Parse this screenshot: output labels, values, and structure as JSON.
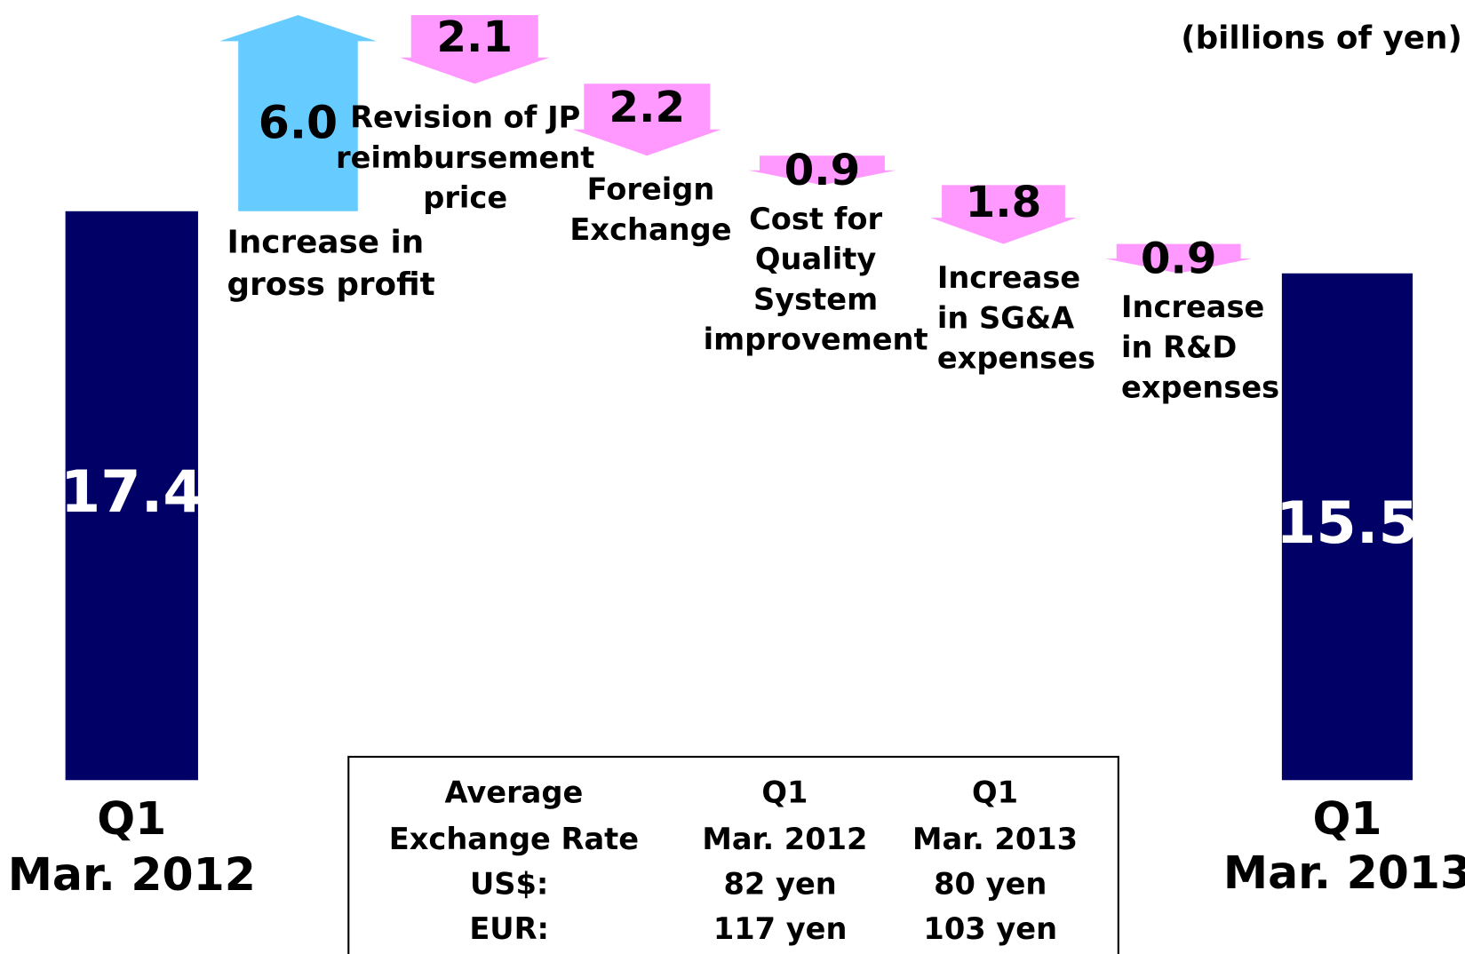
{
  "chart_data": {
    "type": "waterfall",
    "unit_note": "(billions of yen)",
    "categories": [
      [
        "Q1",
        "Mar. 2012"
      ],
      [
        "Increase in",
        "gross profit"
      ],
      [
        "Revision of JP",
        "reimbursement",
        "price"
      ],
      [
        "Foreign",
        "Exchange"
      ],
      [
        "Cost for",
        "Quality",
        "System",
        "improvement"
      ],
      [
        "Increase",
        "in SG&A",
        "expenses"
      ],
      [
        "Increase",
        "in R&D",
        "expenses"
      ],
      [
        "Q1",
        "Mar. 2013"
      ]
    ],
    "values": [
      17.4,
      6.0,
      -2.1,
      -2.2,
      -0.9,
      -1.8,
      -0.9,
      15.5
    ],
    "value_labels": [
      "17.4",
      "6.0",
      "2.1",
      "2.2",
      "0.9",
      "1.8",
      "0.9",
      "15.5"
    ],
    "kinds": [
      "total",
      "change",
      "change",
      "change",
      "change",
      "change",
      "change",
      "total"
    ],
    "colors": {
      "total": "#000066",
      "increase": "#66ccff",
      "decrease": "#ff99ff"
    }
  },
  "exchange_table": {
    "header": [
      [
        "Average",
        "Exchange Rate"
      ],
      [
        "Q1",
        "Mar. 2012"
      ],
      [
        "Q1",
        "Mar. 2013"
      ]
    ],
    "rows": [
      [
        "US$:",
        "82 yen",
        "80 yen"
      ],
      [
        "EUR:",
        "117 yen",
        "103 yen"
      ]
    ]
  }
}
